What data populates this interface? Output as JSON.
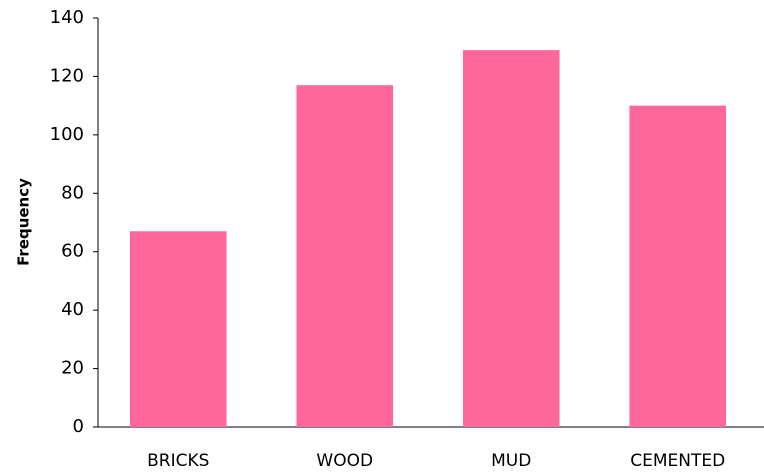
{
  "chart_data": {
    "type": "bar",
    "y_label": "Frequency",
    "categories": [
      "BRICKS",
      "WOOD",
      "MUD",
      "CEMENTED"
    ],
    "values": [
      67,
      117,
      129,
      110
    ],
    "color": "#ff6699",
    "ylim": [
      0,
      140
    ],
    "yticks": [
      0,
      20,
      40,
      60,
      80,
      100,
      120,
      140
    ],
    "grid": false
  }
}
